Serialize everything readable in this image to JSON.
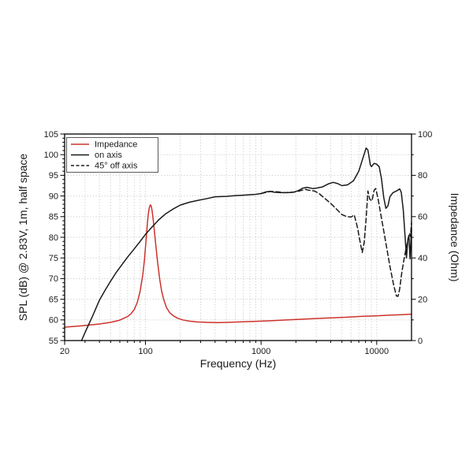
{
  "figure": {
    "background": "#ffffff",
    "colors": {
      "impedance_red": "#cc332b",
      "curve_black": "#1a1a1a",
      "grid_gray": "#c6c6c6",
      "frame_black": "#000000",
      "text": "#1a1a1a"
    }
  },
  "chart_data": {
    "type": "line",
    "title": "",
    "x_axis": {
      "label": "Frequency (Hz)",
      "scale": "log",
      "min": 20,
      "max": 20000,
      "major_ticks": [
        20,
        100,
        1000,
        10000
      ],
      "tick_labels": [
        "20",
        "100",
        "1000",
        "10000"
      ],
      "grid": true
    },
    "y_left": {
      "label": "SPL (dB) @ 2.83V, 1m, half space",
      "min": 55,
      "max": 105,
      "major_step": 5,
      "minor_step": 1,
      "ticks": [
        55,
        60,
        65,
        70,
        75,
        80,
        85,
        90,
        95,
        100,
        105
      ],
      "grid": true
    },
    "y_right": {
      "label": "Impedance (Ohm)",
      "min": 0,
      "max": 100,
      "major_step": 20,
      "minor_step": 10,
      "ticks": [
        0,
        20,
        40,
        60,
        80,
        100
      ]
    },
    "legend_position": "top-left",
    "series": [
      {
        "name": "Impedance",
        "axis": "right",
        "line": "solid",
        "color": "#cc332b",
        "points": [
          [
            20,
            6.5
          ],
          [
            25,
            6.9
          ],
          [
            30,
            7.3
          ],
          [
            40,
            8.0
          ],
          [
            50,
            8.8
          ],
          [
            60,
            9.9
          ],
          [
            70,
            11.6
          ],
          [
            75,
            13
          ],
          [
            80,
            15
          ],
          [
            85,
            18.5
          ],
          [
            90,
            24
          ],
          [
            95,
            32
          ],
          [
            98,
            39
          ],
          [
            100,
            45
          ],
          [
            102,
            51
          ],
          [
            104,
            57
          ],
          [
            106,
            61.5
          ],
          [
            108,
            64.3
          ],
          [
            110,
            65.7
          ],
          [
            112,
            65.3
          ],
          [
            114,
            63
          ],
          [
            117,
            58
          ],
          [
            120,
            52
          ],
          [
            124,
            44
          ],
          [
            128,
            37
          ],
          [
            133,
            29.5
          ],
          [
            138,
            24
          ],
          [
            144,
            19.8
          ],
          [
            152,
            16
          ],
          [
            162,
            13.5
          ],
          [
            175,
            11.9
          ],
          [
            190,
            10.8
          ],
          [
            210,
            10.0
          ],
          [
            240,
            9.4
          ],
          [
            280,
            9.0
          ],
          [
            340,
            8.8
          ],
          [
            420,
            8.7
          ],
          [
            520,
            8.8
          ],
          [
            650,
            9.0
          ],
          [
            800,
            9.2
          ],
          [
            1000,
            9.4
          ],
          [
            1300,
            9.7
          ],
          [
            1700,
            10.0
          ],
          [
            2200,
            10.3
          ],
          [
            3000,
            10.7
          ],
          [
            4000,
            11.0
          ],
          [
            5500,
            11.3
          ],
          [
            7500,
            11.7
          ],
          [
            10000,
            12.0
          ],
          [
            13000,
            12.3
          ],
          [
            16000,
            12.5
          ],
          [
            20000,
            12.8
          ]
        ]
      },
      {
        "name": "on axis",
        "axis": "left",
        "line": "solid",
        "color": "#1a1a1a",
        "points": [
          [
            28,
            55
          ],
          [
            31,
            57.8
          ],
          [
            35,
            61
          ],
          [
            40,
            64.8
          ],
          [
            45,
            67.3
          ],
          [
            50,
            69.4
          ],
          [
            55,
            71.2
          ],
          [
            60,
            72.7
          ],
          [
            70,
            75.2
          ],
          [
            80,
            77.2
          ],
          [
            90,
            79
          ],
          [
            100,
            80.7
          ],
          [
            115,
            82.6
          ],
          [
            130,
            84.2
          ],
          [
            150,
            85.7
          ],
          [
            175,
            86.9
          ],
          [
            200,
            87.8
          ],
          [
            240,
            88.5
          ],
          [
            280,
            88.9
          ],
          [
            330,
            89.3
          ],
          [
            400,
            89.8
          ],
          [
            500,
            89.9
          ],
          [
            600,
            90.1
          ],
          [
            700,
            90.2
          ],
          [
            800,
            90.3
          ],
          [
            900,
            90.4
          ],
          [
            1000,
            90.6
          ],
          [
            1100,
            91.0
          ],
          [
            1200,
            91.1
          ],
          [
            1300,
            90.9
          ],
          [
            1500,
            90.8
          ],
          [
            1700,
            90.8
          ],
          [
            1900,
            90.9
          ],
          [
            2100,
            91.3
          ],
          [
            2300,
            91.9
          ],
          [
            2500,
            92.1
          ],
          [
            2800,
            91.8
          ],
          [
            3000,
            91.9
          ],
          [
            3400,
            92.2
          ],
          [
            3800,
            92.9
          ],
          [
            4200,
            93.3
          ],
          [
            4600,
            93.0
          ],
          [
            5000,
            92.5
          ],
          [
            5600,
            92.7
          ],
          [
            6300,
            93.7
          ],
          [
            7000,
            96.0
          ],
          [
            7600,
            99.2
          ],
          [
            8100,
            101.6
          ],
          [
            8400,
            101.1
          ],
          [
            8800,
            97.6
          ],
          [
            9000,
            97.1
          ],
          [
            9500,
            97.9
          ],
          [
            10000,
            97.7
          ],
          [
            10500,
            97.1
          ],
          [
            11000,
            94.2
          ],
          [
            11500,
            89.6
          ],
          [
            12000,
            87.0
          ],
          [
            12500,
            87.6
          ],
          [
            13000,
            89.8
          ],
          [
            13800,
            90.8
          ],
          [
            14800,
            91.2
          ],
          [
            15800,
            91.7
          ],
          [
            16300,
            90.9
          ],
          [
            17000,
            86.5
          ],
          [
            17600,
            80.0
          ],
          [
            18100,
            75.0
          ],
          [
            18600,
            79.5
          ],
          [
            19000,
            80.5
          ],
          [
            19400,
            74.8
          ],
          [
            20000,
            82.0
          ]
        ]
      },
      {
        "name": "45° off axis",
        "axis": "left",
        "line": "dashed",
        "color": "#1a1a1a",
        "points": [
          [
            1000,
            90.6
          ],
          [
            1200,
            91.1
          ],
          [
            1400,
            91.0
          ],
          [
            1600,
            90.8
          ],
          [
            1800,
            90.9
          ],
          [
            2000,
            91.0
          ],
          [
            2200,
            91.3
          ],
          [
            2400,
            91.6
          ],
          [
            2600,
            91.4
          ],
          [
            2900,
            91.2
          ],
          [
            3200,
            90.5
          ],
          [
            3600,
            89.3
          ],
          [
            4000,
            88.2
          ],
          [
            4500,
            86.8
          ],
          [
            5000,
            85.5
          ],
          [
            5500,
            85.0
          ],
          [
            6000,
            84.9
          ],
          [
            6400,
            85.4
          ],
          [
            6800,
            82.5
          ],
          [
            7200,
            78.8
          ],
          [
            7500,
            76.3
          ],
          [
            7800,
            78.8
          ],
          [
            8100,
            84.5
          ],
          [
            8400,
            91.2
          ],
          [
            8700,
            89.2
          ],
          [
            9100,
            88.8
          ],
          [
            9500,
            91.4
          ],
          [
            9800,
            91.8
          ],
          [
            10300,
            89.2
          ],
          [
            10800,
            85.8
          ],
          [
            11500,
            81.5
          ],
          [
            12200,
            77.5
          ],
          [
            13000,
            73.0
          ],
          [
            14000,
            68.5
          ],
          [
            14800,
            65.8
          ],
          [
            15300,
            65.7
          ],
          [
            15800,
            67.5
          ],
          [
            16500,
            71.5
          ],
          [
            17300,
            75.0
          ],
          [
            18000,
            77.5
          ],
          [
            18700,
            79.5
          ],
          [
            19300,
            81.0
          ],
          [
            19600,
            80.2
          ],
          [
            20000,
            83.5
          ]
        ]
      }
    ]
  }
}
